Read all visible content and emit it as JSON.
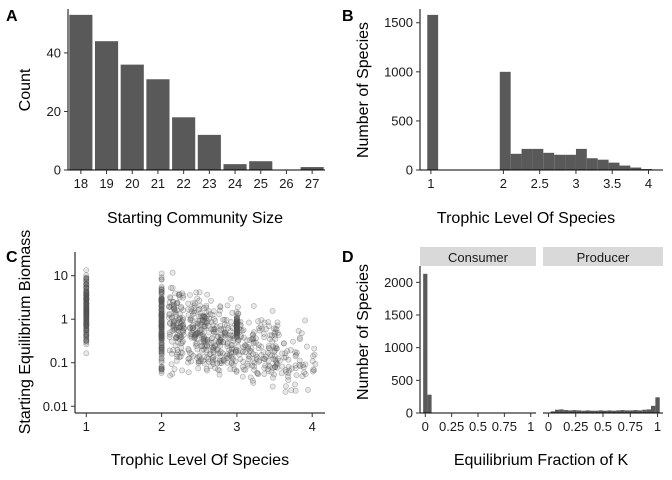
{
  "chart_data": [
    {
      "panel": "A",
      "type": "bar",
      "xlabel": "Starting Community Size",
      "ylabel": "Count",
      "categories": [
        "18",
        "19",
        "20",
        "21",
        "22",
        "23",
        "24",
        "25",
        "26",
        "27"
      ],
      "values": [
        53,
        44,
        36,
        31,
        18,
        12,
        2,
        3,
        0,
        1
      ],
      "ylim": [
        0,
        55
      ],
      "yticks": [
        0,
        20,
        40
      ],
      "color": "#595959"
    },
    {
      "panel": "B",
      "type": "bar",
      "xlabel": "Trophic Level Of Species",
      "ylabel": "Number of Species",
      "bins": [
        {
          "x0": 0.95,
          "x1": 1.1,
          "count": 1580
        },
        {
          "x0": 1.95,
          "x1": 2.1,
          "count": 1000
        },
        {
          "x0": 2.1,
          "x1": 2.25,
          "count": 165
        },
        {
          "x0": 2.25,
          "x1": 2.4,
          "count": 215
        },
        {
          "x0": 2.4,
          "x1": 2.55,
          "count": 215
        },
        {
          "x0": 2.55,
          "x1": 2.7,
          "count": 175
        },
        {
          "x0": 2.7,
          "x1": 2.85,
          "count": 155
        },
        {
          "x0": 2.85,
          "x1": 3.0,
          "count": 155
        },
        {
          "x0": 3.0,
          "x1": 3.15,
          "count": 215
        },
        {
          "x0": 3.15,
          "x1": 3.3,
          "count": 120
        },
        {
          "x0": 3.3,
          "x1": 3.45,
          "count": 105
        },
        {
          "x0": 3.45,
          "x1": 3.6,
          "count": 75
        },
        {
          "x0": 3.6,
          "x1": 3.75,
          "count": 45
        },
        {
          "x0": 3.75,
          "x1": 3.9,
          "count": 25
        },
        {
          "x0": 3.9,
          "x1": 4.05,
          "count": 10
        }
      ],
      "xlim": [
        0.85,
        4.2
      ],
      "ylim": [
        0,
        1640
      ],
      "xticks": [
        1,
        2,
        2.5,
        3,
        3.5,
        4
      ],
      "xtick_labels": [
        "1",
        "2",
        "2.5",
        "3",
        "3.5",
        "4"
      ],
      "yticks": [
        0,
        500,
        1000,
        1500
      ],
      "color": "#595959"
    },
    {
      "panel": "C",
      "type": "scatter",
      "xlabel": "Trophic Level Of Species",
      "ylabel": "Starting Equilibrium Biomass",
      "yscale": "log10",
      "xlim": [
        0.85,
        4.17
      ],
      "ylim": [
        0.007,
        35
      ],
      "xticks": [
        1,
        2,
        3,
        4
      ],
      "yticks": [
        0.01,
        0.1,
        1,
        10
      ],
      "ytick_labels": [
        "0.01",
        "0.1",
        "1",
        "10"
      ],
      "point_color": "#555555",
      "clusters": [
        {
          "x": 1.0,
          "x_spread": 0,
          "n": 160,
          "logy_min": -0.85,
          "logy_max": 1.3
        },
        {
          "x": 2.0,
          "x_spread": 0,
          "n": 150,
          "logy_min": -1.6,
          "logy_max": 1.45
        },
        {
          "x": 2.2,
          "x_spread": 0.1,
          "n": 120,
          "logy_min": -1.5,
          "logy_max": 1.2
        },
        {
          "x": 2.5,
          "x_spread": 0.15,
          "n": 150,
          "logy_min": -1.5,
          "logy_max": 0.9
        },
        {
          "x": 2.85,
          "x_spread": 0.2,
          "n": 150,
          "logy_min": -1.7,
          "logy_max": 0.7
        },
        {
          "x": 3.0,
          "x_spread": 0,
          "n": 60,
          "logy_min": -0.6,
          "logy_max": 0.2
        },
        {
          "x": 3.3,
          "x_spread": 0.25,
          "n": 120,
          "logy_min": -1.8,
          "logy_max": 0.5
        },
        {
          "x": 3.75,
          "x_spread": 0.3,
          "n": 70,
          "logy_min": -1.9,
          "logy_max": 0.1
        }
      ]
    },
    {
      "panel": "D",
      "type": "bar",
      "xlabel": "Equilibrium Fraction of K",
      "ylabel": "Number of Species",
      "ylim": [
        0,
        2250
      ],
      "yticks": [
        0,
        500,
        1000,
        1500,
        2000
      ],
      "xlim": [
        -0.05,
        1.05
      ],
      "xticks": [
        0,
        0.25,
        0.5,
        0.75,
        1
      ],
      "xtick_labels": [
        "0",
        "0.25",
        "0.5",
        "0.75",
        "1"
      ],
      "color": "#595959",
      "facets": [
        {
          "name": "Consumer",
          "bins": [
            {
              "x0": -0.02,
              "x1": 0.02,
              "count": 2130
            },
            {
              "x0": 0.02,
              "x1": 0.06,
              "count": 280
            }
          ]
        },
        {
          "name": "Producer",
          "bins": [
            {
              "x0": 0.02,
              "x1": 0.06,
              "count": 25
            },
            {
              "x0": 0.06,
              "x1": 0.1,
              "count": 50
            },
            {
              "x0": 0.1,
              "x1": 0.14,
              "count": 55
            },
            {
              "x0": 0.14,
              "x1": 0.18,
              "count": 45
            },
            {
              "x0": 0.18,
              "x1": 0.22,
              "count": 40
            },
            {
              "x0": 0.22,
              "x1": 0.26,
              "count": 45
            },
            {
              "x0": 0.26,
              "x1": 0.3,
              "count": 40
            },
            {
              "x0": 0.3,
              "x1": 0.34,
              "count": 35
            },
            {
              "x0": 0.34,
              "x1": 0.38,
              "count": 40
            },
            {
              "x0": 0.38,
              "x1": 0.42,
              "count": 35
            },
            {
              "x0": 0.42,
              "x1": 0.46,
              "count": 35
            },
            {
              "x0": 0.46,
              "x1": 0.5,
              "count": 40
            },
            {
              "x0": 0.5,
              "x1": 0.54,
              "count": 35
            },
            {
              "x0": 0.54,
              "x1": 0.58,
              "count": 40
            },
            {
              "x0": 0.58,
              "x1": 0.62,
              "count": 35
            },
            {
              "x0": 0.62,
              "x1": 0.66,
              "count": 40
            },
            {
              "x0": 0.66,
              "x1": 0.7,
              "count": 45
            },
            {
              "x0": 0.7,
              "x1": 0.74,
              "count": 40
            },
            {
              "x0": 0.74,
              "x1": 0.78,
              "count": 40
            },
            {
              "x0": 0.78,
              "x1": 0.82,
              "count": 45
            },
            {
              "x0": 0.82,
              "x1": 0.86,
              "count": 40
            },
            {
              "x0": 0.86,
              "x1": 0.9,
              "count": 50
            },
            {
              "x0": 0.9,
              "x1": 0.94,
              "count": 55
            },
            {
              "x0": 0.94,
              "x1": 0.98,
              "count": 110
            },
            {
              "x0": 0.98,
              "x1": 1.02,
              "count": 240
            }
          ]
        }
      ]
    }
  ]
}
